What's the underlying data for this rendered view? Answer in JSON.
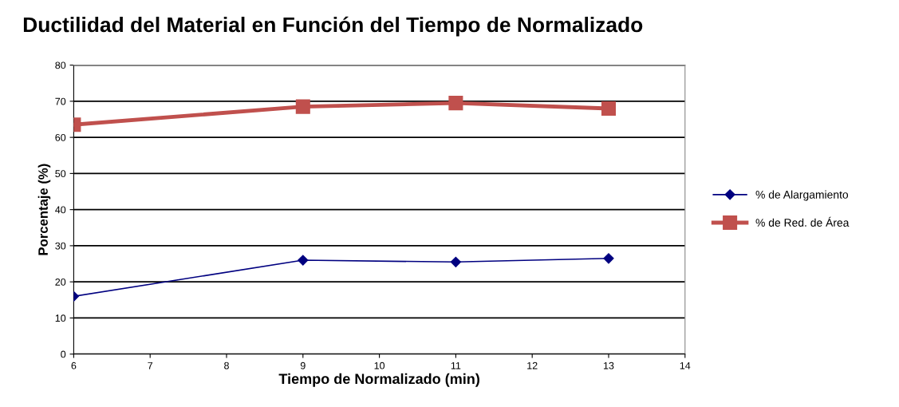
{
  "chart_data": {
    "type": "line",
    "title": "Ductilidad del Material en Función del Tiempo de Normalizado",
    "xlabel": "Tiempo de Normalizado (min)",
    "ylabel": "Porcentaje (%)",
    "x": [
      6,
      9,
      11,
      13
    ],
    "series": [
      {
        "name": "% de Alargamiento",
        "color": "#000080",
        "marker": "diamond",
        "values": [
          16,
          26,
          25.5,
          26.5
        ]
      },
      {
        "name": "% de Red. de Área",
        "color": "#c0504d",
        "marker": "square",
        "values": [
          63.5,
          68.5,
          69.5,
          68
        ]
      }
    ],
    "xlim": [
      6,
      14
    ],
    "xticks": [
      6,
      7,
      8,
      9,
      10,
      11,
      12,
      13,
      14
    ],
    "ylim": [
      0,
      80
    ],
    "yticks": [
      0,
      10,
      20,
      30,
      40,
      50,
      60,
      70,
      80
    ],
    "grid": "y",
    "legend": "right",
    "line_style": "solid"
  }
}
